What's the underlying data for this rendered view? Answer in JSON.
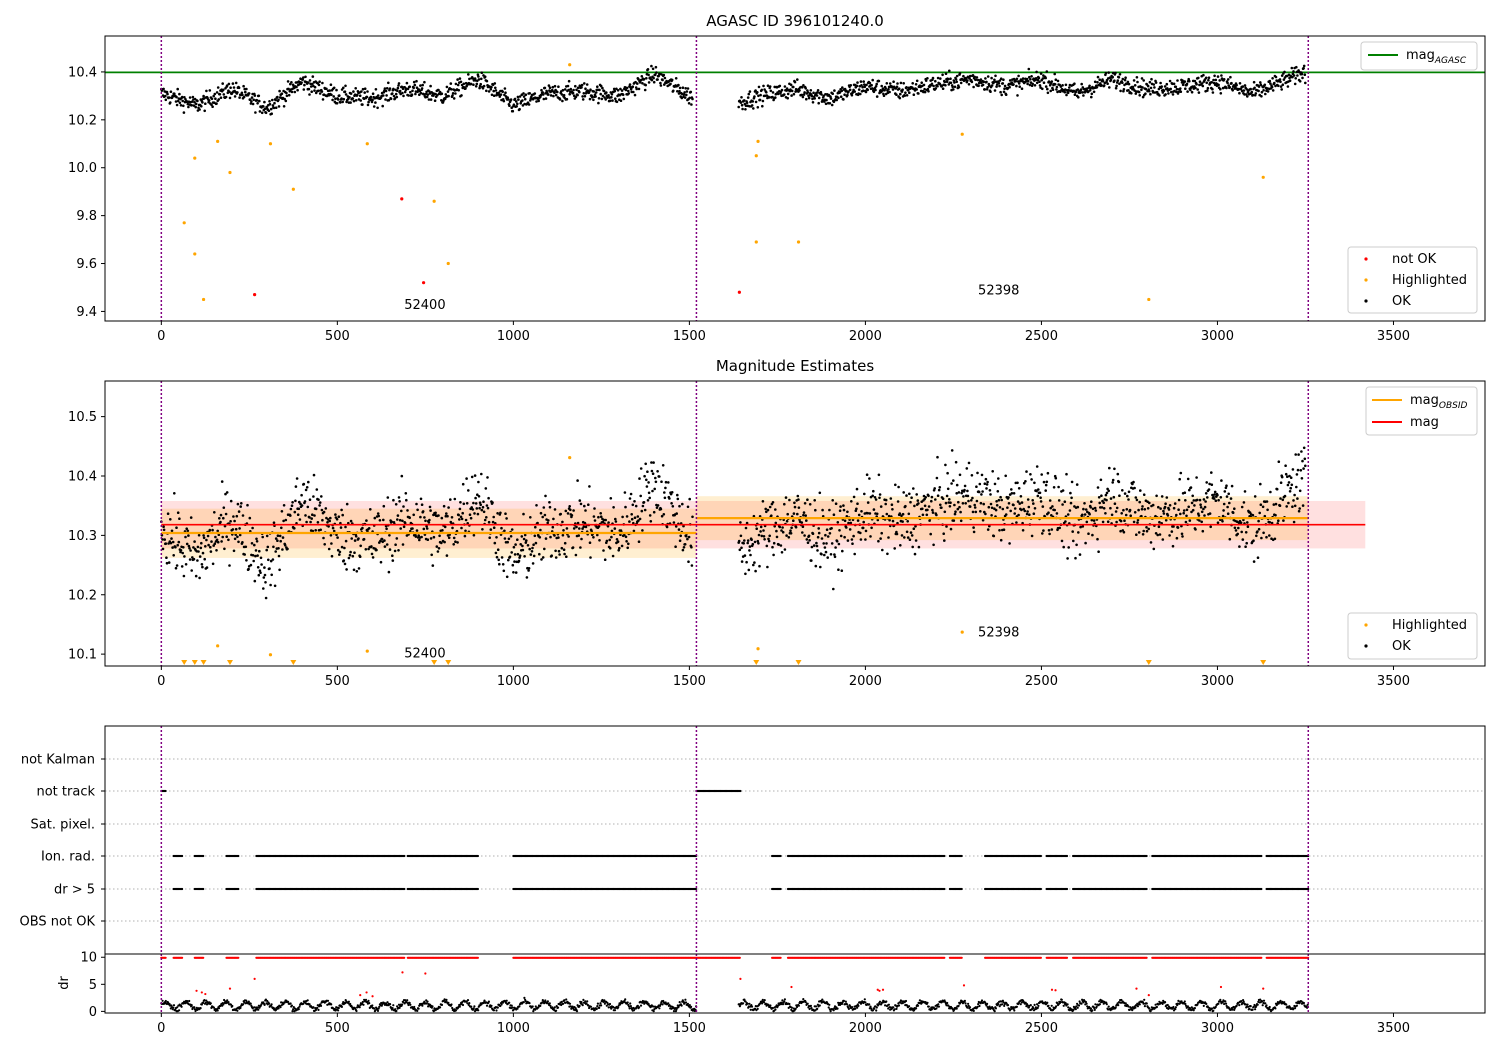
{
  "chart_data": [
    {
      "type": "scatter",
      "title": "AGASC ID 396101240.0",
      "xlabel": "",
      "ylabel": "",
      "xlim": [
        -160,
        3760
      ],
      "ylim": [
        9.36,
        10.55
      ],
      "xticks": [
        0,
        500,
        1000,
        1500,
        2000,
        2500,
        3000,
        3500
      ],
      "xtick_labels": [
        "0",
        "500",
        "1000",
        "1500",
        "2000",
        "2500",
        "3000",
        "3500"
      ],
      "yticks": [
        9.4,
        9.6,
        9.8,
        10.0,
        10.2,
        10.4
      ],
      "ytick_labels": [
        "9.4",
        "9.6",
        "9.8",
        "10.0",
        "10.2",
        "10.4"
      ],
      "obs_boundaries": [
        0,
        1520,
        3258
      ],
      "obs_labels": [
        {
          "text": "52400",
          "x": 690,
          "y": 9.41
        },
        {
          "text": "52398",
          "x": 2320,
          "y": 9.47
        }
      ],
      "legend_top": {
        "placement": "top-right",
        "entries": [
          {
            "label": "mag",
            "sub": "AGASC",
            "color": "#008000",
            "kind": "line"
          }
        ]
      },
      "legend_bottom": {
        "placement": "bottom-right",
        "entries": [
          {
            "label": "not OK",
            "color": "#ff0000",
            "kind": "dot"
          },
          {
            "label": "Highlighted",
            "color": "#ffa500",
            "kind": "dot"
          },
          {
            "label": "OK",
            "color": "#000000",
            "kind": "dot"
          }
        ]
      },
      "hlines": [
        {
          "name": "mag AGASC",
          "y": 10.398,
          "x_range": [
            -160,
            3760
          ],
          "color": "#008000"
        }
      ],
      "series": [
        {
          "name": "OK",
          "color": "#000000",
          "kind": "ok_band",
          "segments": [
            {
              "x": [
                0,
                100,
                200,
                300,
                400,
                500,
                600,
                700,
                800,
                900,
                1000,
                1100,
                1200,
                1300,
                1400,
                1510
              ],
              "y": [
                10.31,
                10.26,
                10.33,
                10.25,
                10.36,
                10.3,
                10.29,
                10.33,
                10.3,
                10.37,
                10.26,
                10.31,
                10.32,
                10.3,
                10.39,
                10.29
              ]
            },
            {
              "x": [
                1640,
                1700,
                1800,
                1900,
                2000,
                2100,
                2200,
                2300,
                2400,
                2500,
                2600,
                2700,
                2800,
                2900,
                3000,
                3100,
                3250
              ],
              "y": [
                10.27,
                10.3,
                10.33,
                10.29,
                10.34,
                10.32,
                10.35,
                10.37,
                10.34,
                10.37,
                10.31,
                10.37,
                10.33,
                10.34,
                10.36,
                10.31,
                10.4
              ]
            }
          ]
        },
        {
          "name": "Highlighted",
          "color": "#ffa500",
          "points": [
            [
              65,
              9.77
            ],
            [
              95,
              10.04
            ],
            [
              95,
              9.64
            ],
            [
              120,
              9.45
            ],
            [
              160,
              10.11
            ],
            [
              195,
              9.98
            ],
            [
              310,
              10.1
            ],
            [
              375,
              9.91
            ],
            [
              585,
              10.1
            ],
            [
              775,
              9.86
            ],
            [
              815,
              9.6
            ],
            [
              1160,
              10.43
            ],
            [
              1690,
              10.05
            ],
            [
              1690,
              9.69
            ],
            [
              1695,
              10.11
            ],
            [
              1810,
              9.69
            ],
            [
              2275,
              10.14
            ],
            [
              2805,
              9.45
            ],
            [
              3130,
              9.96
            ]
          ]
        },
        {
          "name": "not OK",
          "color": "#ff0000",
          "points": [
            [
              265,
              9.47
            ],
            [
              683,
              9.87
            ],
            [
              745,
              9.52
            ],
            [
              1642,
              9.48
            ]
          ]
        }
      ]
    },
    {
      "type": "scatter",
      "title": "Magnitude Estimates",
      "xlabel": "",
      "ylabel": "",
      "xlim": [
        -160,
        3760
      ],
      "ylim": [
        10.08,
        10.56
      ],
      "xticks": [
        0,
        500,
        1000,
        1500,
        2000,
        2500,
        3000,
        3500
      ],
      "xtick_labels": [
        "0",
        "500",
        "1000",
        "1500",
        "2000",
        "2500",
        "3000",
        "3500"
      ],
      "yticks": [
        10.1,
        10.2,
        10.3,
        10.4,
        10.5
      ],
      "ytick_labels": [
        "10.1",
        "10.2",
        "10.3",
        "10.4",
        "10.5"
      ],
      "obs_boundaries": [
        0,
        1520,
        3258
      ],
      "obs_labels": [
        {
          "text": "52400",
          "x": 690,
          "y": 10.094
        },
        {
          "text": "52398",
          "x": 2320,
          "y": 10.13
        }
      ],
      "legend_top": {
        "placement": "top-right",
        "entries": [
          {
            "label": "mag",
            "sub": "OBSID",
            "color": "#ffa500",
            "kind": "line"
          },
          {
            "label": "mag",
            "color": "#ff0000",
            "kind": "line"
          }
        ]
      },
      "legend_bottom": {
        "placement": "bottom-right",
        "entries": [
          {
            "label": "Highlighted",
            "color": "#ffa500",
            "kind": "dot"
          },
          {
            "label": "OK",
            "color": "#000000",
            "kind": "dot"
          }
        ]
      },
      "hlines": [
        {
          "name": "mag",
          "y": 10.318,
          "x_range": [
            0,
            3420
          ],
          "color": "#ff0000",
          "band": [
            10.278,
            10.358
          ]
        },
        {
          "name": "mag OBSID 52400",
          "y": 10.304,
          "x_range": [
            0,
            1520
          ],
          "color": "#ffa500",
          "band": [
            10.262,
            10.345
          ]
        },
        {
          "name": "mag OBSID 52398",
          "y": 10.329,
          "x_range": [
            1520,
            3258
          ],
          "color": "#ffa500",
          "band": [
            10.292,
            10.366
          ]
        }
      ],
      "series": [
        {
          "name": "OK",
          "color": "#000000",
          "kind": "ok_band",
          "segments": [
            {
              "x": [
                0,
                100,
                200,
                300,
                400,
                500,
                600,
                700,
                800,
                900,
                1000,
                1100,
                1200,
                1300,
                1400,
                1510
              ],
              "y": [
                10.31,
                10.26,
                10.33,
                10.25,
                10.36,
                10.3,
                10.29,
                10.33,
                10.3,
                10.37,
                10.26,
                10.31,
                10.32,
                10.3,
                10.39,
                10.29
              ]
            },
            {
              "x": [
                1640,
                1700,
                1800,
                1900,
                2000,
                2100,
                2200,
                2300,
                2400,
                2500,
                2600,
                2700,
                2800,
                2900,
                3000,
                3100,
                3250
              ],
              "y": [
                10.27,
                10.3,
                10.33,
                10.29,
                10.34,
                10.32,
                10.35,
                10.37,
                10.34,
                10.37,
                10.31,
                10.37,
                10.33,
                10.34,
                10.36,
                10.31,
                10.4
              ]
            }
          ]
        },
        {
          "name": "Highlighted",
          "color": "#ffa500",
          "points": [
            [
              160,
              10.114
            ],
            [
              310,
              10.099
            ],
            [
              585,
              10.105
            ],
            [
              1160,
              10.431
            ],
            [
              1695,
              10.109
            ],
            [
              2275,
              10.137
            ]
          ]
        },
        {
          "name": "Highlighted (below range)",
          "color": "#ffa500",
          "marker": "triangle-down",
          "y": 10.085,
          "x": [
            65,
            95,
            120,
            195,
            375,
            775,
            815,
            1690,
            1810,
            2805,
            3130
          ]
        }
      ]
    },
    {
      "type": "scatter",
      "title": "",
      "xlabel": "",
      "ylabel": "",
      "xlim": [
        -160,
        3760
      ],
      "xticks": [
        0,
        500,
        1000,
        1500,
        2000,
        2500,
        3000,
        3500
      ],
      "categories": [
        "not Kalman",
        "not track",
        "Sat. pixel.",
        "Ion. rad.",
        "dr > 5",
        "OBS not OK"
      ],
      "obs_boundaries": [
        0,
        1520,
        3258
      ],
      "grid": true,
      "flag_ranges": {
        "not track": [
          [
            0,
            12
          ],
          [
            1520,
            1645
          ]
        ],
        "Ion. rad.": [
          [
            35,
            60
          ],
          [
            95,
            120
          ],
          [
            185,
            220
          ],
          [
            270,
            690
          ],
          [
            700,
            900
          ],
          [
            1000,
            1520
          ],
          [
            1735,
            1760
          ],
          [
            1780,
            2225
          ],
          [
            2240,
            2275
          ],
          [
            2340,
            2500
          ],
          [
            2515,
            2575
          ],
          [
            2590,
            2800
          ],
          [
            2815,
            3125
          ],
          [
            3140,
            3258
          ]
        ],
        "dr > 5": [
          [
            35,
            60
          ],
          [
            95,
            120
          ],
          [
            185,
            220
          ],
          [
            270,
            690
          ],
          [
            700,
            900
          ],
          [
            1000,
            1520
          ],
          [
            1735,
            1760
          ],
          [
            1780,
            2225
          ],
          [
            2240,
            2275
          ],
          [
            2340,
            2500
          ],
          [
            2515,
            2575
          ],
          [
            2590,
            2800
          ],
          [
            2815,
            3125
          ],
          [
            3140,
            3258
          ]
        ]
      }
    },
    {
      "type": "scatter",
      "title": "",
      "xlabel": "",
      "ylabel": "dr",
      "xlim": [
        -160,
        3760
      ],
      "ylim": [
        -0.3,
        10.6
      ],
      "xticks": [
        0,
        500,
        1000,
        1500,
        2000,
        2500,
        3000,
        3500
      ],
      "xtick_labels": [
        "0",
        "500",
        "1000",
        "1500",
        "2000",
        "2500",
        "3000",
        "3500"
      ],
      "yticks": [
        0,
        5,
        10
      ],
      "ytick_labels": [
        "0",
        "5",
        "10"
      ],
      "obs_boundaries": [
        0,
        1520,
        3258
      ],
      "series": [
        {
          "name": "dr",
          "color": "#000000",
          "kind": "dr_band",
          "segments": [
            [
              0,
              1520
            ],
            [
              1640,
              3258
            ]
          ],
          "range": [
            0,
            2.5
          ]
        },
        {
          "name": "dr > 5 (clipped)",
          "color": "#ff0000",
          "y": 9.9,
          "segments": [
            [
              0,
              12
            ],
            [
              35,
              60
            ],
            [
              95,
              120
            ],
            [
              185,
              220
            ],
            [
              270,
              690
            ],
            [
              700,
              900
            ],
            [
              1000,
              1645
            ],
            [
              1735,
              1760
            ],
            [
              1780,
              2225
            ],
            [
              2240,
              2275
            ],
            [
              2340,
              2500
            ],
            [
              2515,
              2575
            ],
            [
              2590,
              2800
            ],
            [
              2815,
              3125
            ],
            [
              3140,
              3258
            ]
          ]
        },
        {
          "name": "dr outliers",
          "color": "#ff0000",
          "points": [
            [
              100,
              3.8
            ],
            [
              115,
              3.5
            ],
            [
              125,
              3.2
            ],
            [
              195,
              4.2
            ],
            [
              265,
              6.0
            ],
            [
              565,
              3.0
            ],
            [
              583,
              3.5
            ],
            [
              600,
              2.8
            ],
            [
              685,
              7.2
            ],
            [
              750,
              7.0
            ],
            [
              1645,
              6.0
            ],
            [
              1790,
              4.5
            ],
            [
              2035,
              4.0
            ],
            [
              2040,
              3.8
            ],
            [
              2050,
              4.0
            ],
            [
              2280,
              4.8
            ],
            [
              2530,
              4.0
            ],
            [
              2540,
              3.9
            ],
            [
              2770,
              4.2
            ],
            [
              2805,
              3.0
            ],
            [
              3010,
              4.5
            ],
            [
              3130,
              4.2
            ]
          ]
        }
      ]
    }
  ]
}
